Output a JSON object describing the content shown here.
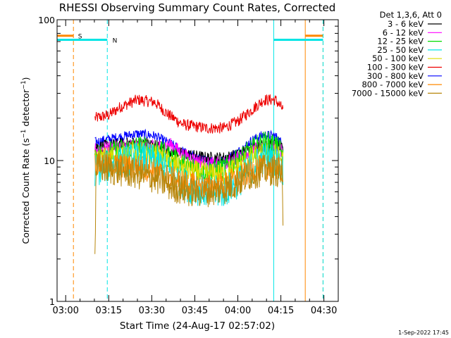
{
  "chart_data": {
    "type": "line",
    "title": "RHESSI Observing Summary Count Rates, Corrected",
    "ylabel": "Corrected Count Rate (s⁻¹ detector⁻¹)",
    "ylabel_main": "Corrected Count Rate (s",
    "ylabel_sup1": "−1",
    "ylabel_mid": " detector",
    "ylabel_sup2": "−1",
    "ylabel_end": ")",
    "xlabel": "Start Time (24-Aug-17 02:57:02)",
    "yscale": "log",
    "ylim": [
      1,
      100
    ],
    "xlim_minutes": [
      0,
      98
    ],
    "y_ticks": [
      {
        "value": 1,
        "label": "1"
      },
      {
        "value": 10,
        "label": "10"
      },
      {
        "value": 100,
        "label": "100"
      }
    ],
    "x_ticks": [
      {
        "minute": 3,
        "label": "03:00"
      },
      {
        "minute": 18,
        "label": "03:15"
      },
      {
        "minute": 33,
        "label": "03:30"
      },
      {
        "minute": 48,
        "label": "03:45"
      },
      {
        "minute": 63,
        "label": "04:00"
      },
      {
        "minute": 78,
        "label": "04:15"
      },
      {
        "minute": 93,
        "label": "04:30"
      }
    ],
    "legend": {
      "header": "Det 1,3,6, Att 0",
      "placement": "right",
      "entries": [
        {
          "label": "3 - 6 keV",
          "color": "#000000"
        },
        {
          "label": "6 - 12 keV",
          "color": "#ff00ff"
        },
        {
          "label": "12 - 25 keV",
          "color": "#00dd00"
        },
        {
          "label": "25 - 50 keV",
          "color": "#00e5e5"
        },
        {
          "label": "50 - 100 keV",
          "color": "#dddd00"
        },
        {
          "label": "100 - 300 keV",
          "color": "#ee0000"
        },
        {
          "label": "300 - 800 keV",
          "color": "#0000ff"
        },
        {
          "label": "800 - 7000 keV",
          "color": "#ff8800"
        },
        {
          "label": "7000 - 15000 keV",
          "color": "#b8860b"
        }
      ]
    },
    "flags": [
      {
        "label": "S",
        "color": "#ff8800",
        "y_value": 77,
        "intervals_minutes": [
          [
            0,
            5.7
          ],
          [
            86.5,
            92.7
          ]
        ],
        "boundaries_minutes": [
          5.7,
          86.5,
          92.7
        ],
        "label_minute": 7.3
      },
      {
        "label": "N",
        "color": "#00e5e5",
        "y_value": 72,
        "intervals_minutes": [
          [
            0,
            17.5
          ],
          [
            75.5,
            92.7
          ]
        ],
        "boundaries_minutes": [
          17.5,
          75.5,
          92.7
        ],
        "label_minute": 19.3
      }
    ],
    "data_interval_minutes": [
      13.2,
      78.8
    ],
    "series": [
      {
        "name": "100 - 300 keV",
        "color": "#ee0000",
        "anchors": [
          [
            13.2,
            20
          ],
          [
            18,
            21
          ],
          [
            22,
            24
          ],
          [
            28,
            27
          ],
          [
            34,
            26
          ],
          [
            39,
            21
          ],
          [
            44,
            18
          ],
          [
            52,
            17
          ],
          [
            58,
            17
          ],
          [
            63,
            19
          ],
          [
            68,
            23
          ],
          [
            72,
            27
          ],
          [
            76,
            27
          ],
          [
            78.8,
            23
          ]
        ],
        "noise": 0.06
      },
      {
        "name": "300 - 800 keV",
        "color": "#0000ff",
        "anchors": [
          [
            13.2,
            13.5
          ],
          [
            20,
            14.5
          ],
          [
            28,
            15.5
          ],
          [
            34,
            15
          ],
          [
            40,
            13
          ],
          [
            46,
            11
          ],
          [
            52,
            10
          ],
          [
            58,
            10
          ],
          [
            63,
            11.5
          ],
          [
            68,
            14
          ],
          [
            72,
            15.2
          ],
          [
            76,
            15
          ],
          [
            78.8,
            13
          ]
        ],
        "noise": 0.05
      },
      {
        "name": "3 - 6 keV",
        "color": "#000000",
        "anchors": [
          [
            13.2,
            12.5
          ],
          [
            20,
            13
          ],
          [
            28,
            13.5
          ],
          [
            34,
            13
          ],
          [
            40,
            11.5
          ],
          [
            46,
            11
          ],
          [
            52,
            10.5
          ],
          [
            58,
            10.5
          ],
          [
            63,
            11
          ],
          [
            68,
            12.5
          ],
          [
            72,
            13
          ],
          [
            76,
            13
          ],
          [
            78.8,
            12
          ]
        ],
        "noise": 0.06
      },
      {
        "name": "6 - 12 keV",
        "color": "#ff00ff",
        "anchors": [
          [
            13.2,
            12
          ],
          [
            20,
            12.5
          ],
          [
            28,
            13
          ],
          [
            34,
            12.5
          ],
          [
            40,
            13
          ],
          [
            44,
            11
          ],
          [
            52,
            9.5
          ],
          [
            58,
            9.5
          ],
          [
            63,
            10.5
          ],
          [
            68,
            12
          ],
          [
            72,
            12.5
          ],
          [
            76,
            12.5
          ],
          [
            78.8,
            11.5
          ]
        ],
        "noise": 0.07
      },
      {
        "name": "12 - 25 keV",
        "color": "#00dd00",
        "anchors": [
          [
            13.2,
            11
          ],
          [
            20,
            11.5
          ],
          [
            28,
            12.5
          ],
          [
            34,
            12
          ],
          [
            40,
            10.5
          ],
          [
            46,
            9
          ],
          [
            52,
            8.5
          ],
          [
            58,
            8.8
          ],
          [
            63,
            10
          ],
          [
            68,
            12
          ],
          [
            72,
            13.5
          ],
          [
            76,
            13
          ],
          [
            78.8,
            11
          ]
        ],
        "noise": 0.12
      },
      {
        "name": "50 - 100 keV",
        "color": "#dddd00",
        "anchors": [
          [
            13.2,
            10
          ],
          [
            20,
            10.8
          ],
          [
            28,
            11.5
          ],
          [
            34,
            11
          ],
          [
            40,
            9.5
          ],
          [
            46,
            8.5
          ],
          [
            52,
            8
          ],
          [
            58,
            8
          ],
          [
            63,
            9
          ],
          [
            68,
            10.5
          ],
          [
            72,
            11
          ],
          [
            76,
            11
          ],
          [
            78.8,
            10
          ]
        ],
        "noise": 0.12
      },
      {
        "name": "25 - 50 keV",
        "color": "#00e5e5",
        "anchors": [
          [
            13.2,
            8.5
          ],
          [
            20,
            9.5
          ],
          [
            28,
            10.5
          ],
          [
            34,
            10
          ],
          [
            40,
            8
          ],
          [
            46,
            6.5
          ],
          [
            52,
            6
          ],
          [
            58,
            6
          ],
          [
            63,
            7
          ],
          [
            68,
            9
          ],
          [
            72,
            10.5
          ],
          [
            76,
            10
          ],
          [
            78.8,
            8.5
          ]
        ],
        "noise": 0.17
      },
      {
        "name": "800 - 7000 keV",
        "color": "#ff8800",
        "anchors": [
          [
            13.2,
            9.5
          ],
          [
            20,
            9.3
          ],
          [
            28,
            9
          ],
          [
            34,
            8.5
          ],
          [
            40,
            7.5
          ],
          [
            46,
            6.8
          ],
          [
            52,
            6.5
          ],
          [
            58,
            6.8
          ],
          [
            63,
            7.5
          ],
          [
            68,
            8.5
          ],
          [
            72,
            9
          ],
          [
            76,
            9
          ],
          [
            78.8,
            8.5
          ]
        ],
        "noise": 0.13
      },
      {
        "name": "7000 - 15000 keV",
        "color": "#b8860b",
        "anchors": [
          [
            13.2,
            2
          ],
          [
            13.6,
            9
          ],
          [
            20,
            8.5
          ],
          [
            28,
            8
          ],
          [
            34,
            7.5
          ],
          [
            40,
            6.5
          ],
          [
            46,
            6
          ],
          [
            52,
            6
          ],
          [
            58,
            6.2
          ],
          [
            63,
            7
          ],
          [
            68,
            8
          ],
          [
            72,
            8.5
          ],
          [
            76,
            8.5
          ],
          [
            78.4,
            8
          ],
          [
            78.8,
            2.5
          ]
        ],
        "noise": 0.16
      }
    ]
  },
  "footer": {
    "date_stamp": "1-Sep-2022 17:45"
  }
}
